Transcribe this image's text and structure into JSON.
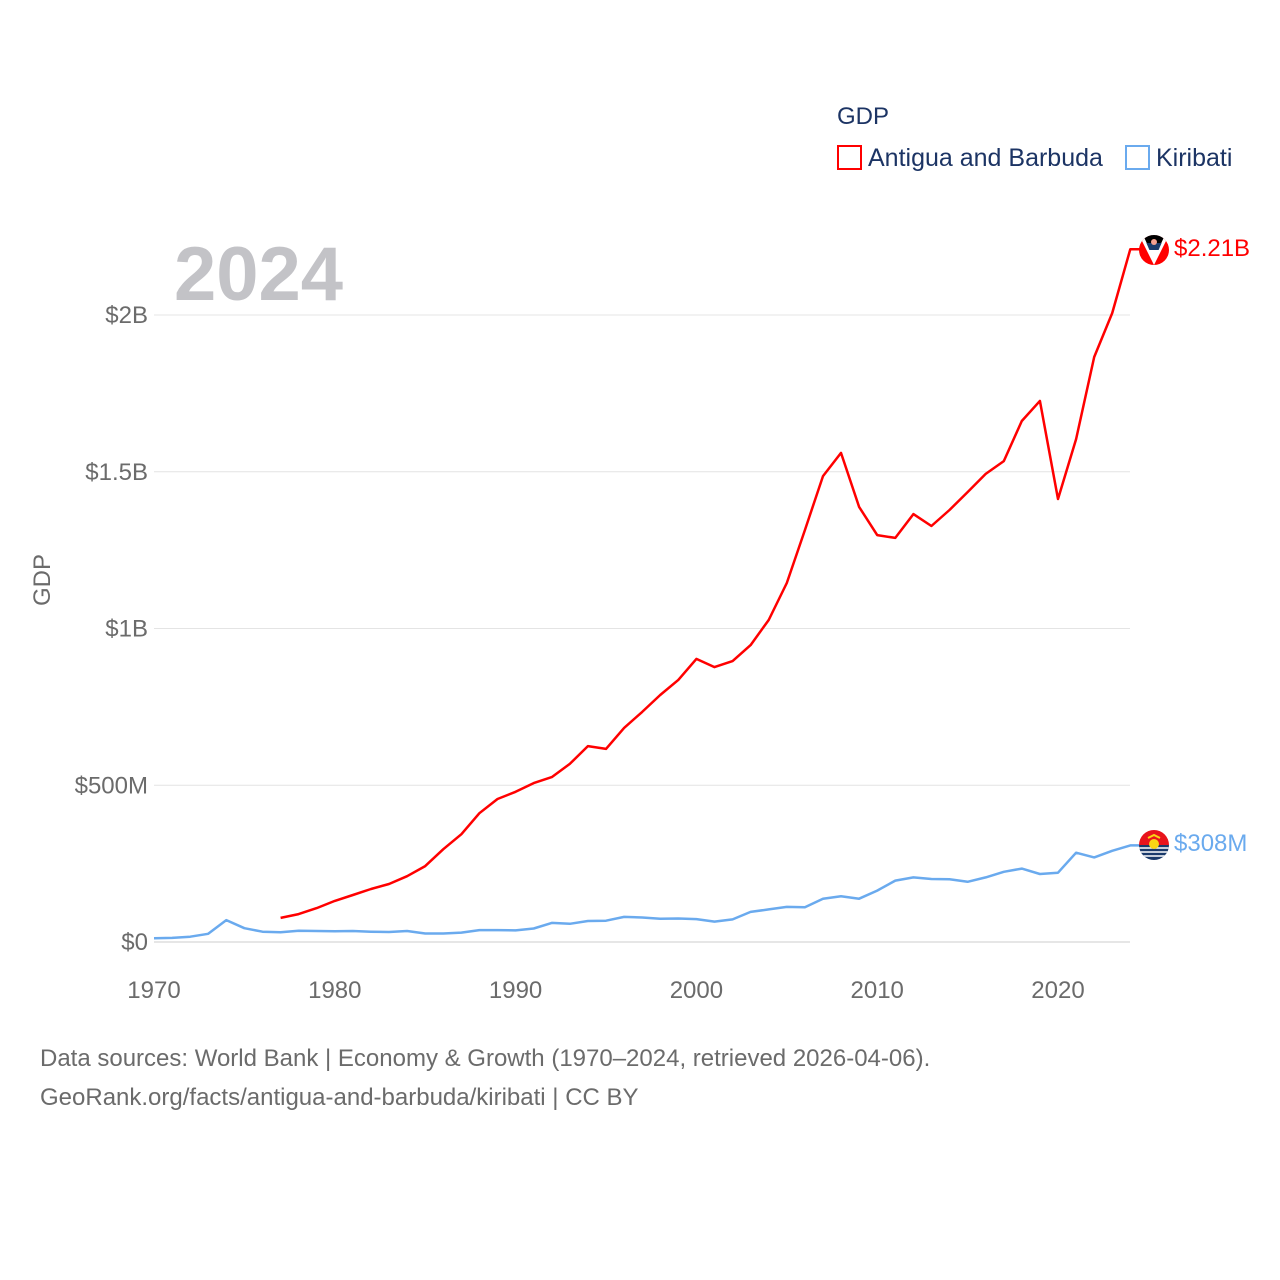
{
  "chart_data": {
    "type": "line",
    "title": "GDP",
    "year_label": "2024",
    "xlabel": "",
    "ylabel": "GDP",
    "xlim": [
      1970,
      2024
    ],
    "ylim": [
      0,
      2300000000
    ],
    "x_ticks": [
      1970,
      1980,
      1990,
      2000,
      2010,
      2020
    ],
    "x_tick_labels": [
      "1970",
      "1980",
      "1990",
      "2000",
      "2010",
      "2020"
    ],
    "y_ticks": [
      0,
      500000000,
      1000000000,
      1500000000,
      2000000000
    ],
    "y_tick_labels": [
      "$0",
      "$500M",
      "$1B",
      "$1.5B",
      "$2B"
    ],
    "grid": true,
    "legend_position": "top-right",
    "series": [
      {
        "name": "Antigua and Barbuda",
        "color": "#ff0000",
        "end_label": "$2.21B",
        "flag": "antigua-and-barbuda-flag",
        "x": [
          1977,
          1978,
          1979,
          1980,
          1981,
          1982,
          1983,
          1984,
          1985,
          1986,
          1987,
          1988,
          1989,
          1990,
          1991,
          1992,
          1993,
          1994,
          1995,
          1996,
          1997,
          1998,
          1999,
          2000,
          2001,
          2002,
          2003,
          2004,
          2005,
          2006,
          2007,
          2008,
          2009,
          2010,
          2011,
          2012,
          2013,
          2014,
          2015,
          2016,
          2017,
          2018,
          2019,
          2020,
          2021,
          2022,
          2023,
          2024
        ],
        "values_billions": [
          0.077,
          0.089,
          0.108,
          0.131,
          0.15,
          0.169,
          0.185,
          0.21,
          0.242,
          0.296,
          0.344,
          0.411,
          0.456,
          0.479,
          0.507,
          0.526,
          0.568,
          0.625,
          0.616,
          0.683,
          0.734,
          0.788,
          0.836,
          0.903,
          0.877,
          0.896,
          0.947,
          1.027,
          1.145,
          1.314,
          1.486,
          1.56,
          1.388,
          1.298,
          1.289,
          1.365,
          1.327,
          1.378,
          1.435,
          1.493,
          1.534,
          1.662,
          1.726,
          1.413,
          1.604,
          1.866,
          2.006,
          2.21
        ]
      },
      {
        "name": "Kiribati",
        "color": "#6aaaee",
        "end_label": "$308M",
        "flag": "kiribati-flag",
        "x": [
          1970,
          1971,
          1972,
          1973,
          1974,
          1975,
          1976,
          1977,
          1978,
          1979,
          1980,
          1981,
          1982,
          1983,
          1984,
          1985,
          1986,
          1987,
          1988,
          1989,
          1990,
          1991,
          1992,
          1993,
          1994,
          1995,
          1996,
          1997,
          1998,
          1999,
          2000,
          2001,
          2002,
          2003,
          2004,
          2005,
          2006,
          2007,
          2008,
          2009,
          2010,
          2011,
          2012,
          2013,
          2014,
          2015,
          2016,
          2017,
          2018,
          2019,
          2020,
          2021,
          2022,
          2023,
          2024
        ],
        "values_billions": [
          0.012,
          0.013,
          0.017,
          0.026,
          0.07,
          0.044,
          0.033,
          0.031,
          0.036,
          0.035,
          0.034,
          0.035,
          0.033,
          0.032,
          0.035,
          0.027,
          0.027,
          0.03,
          0.038,
          0.038,
          0.037,
          0.043,
          0.061,
          0.058,
          0.067,
          0.068,
          0.08,
          0.078,
          0.074,
          0.075,
          0.073,
          0.065,
          0.072,
          0.096,
          0.104,
          0.112,
          0.111,
          0.138,
          0.146,
          0.138,
          0.164,
          0.196,
          0.206,
          0.201,
          0.2,
          0.192,
          0.206,
          0.224,
          0.234,
          0.217,
          0.221,
          0.285,
          0.27,
          0.291,
          0.308
        ]
      }
    ]
  },
  "footer": {
    "line1": "Data sources: World Bank | Economy & Growth (1970–2024, retrieved 2026-04-06).",
    "line2": "GeoRank.org/facts/antigua-and-barbuda/kiribati | CC BY"
  }
}
